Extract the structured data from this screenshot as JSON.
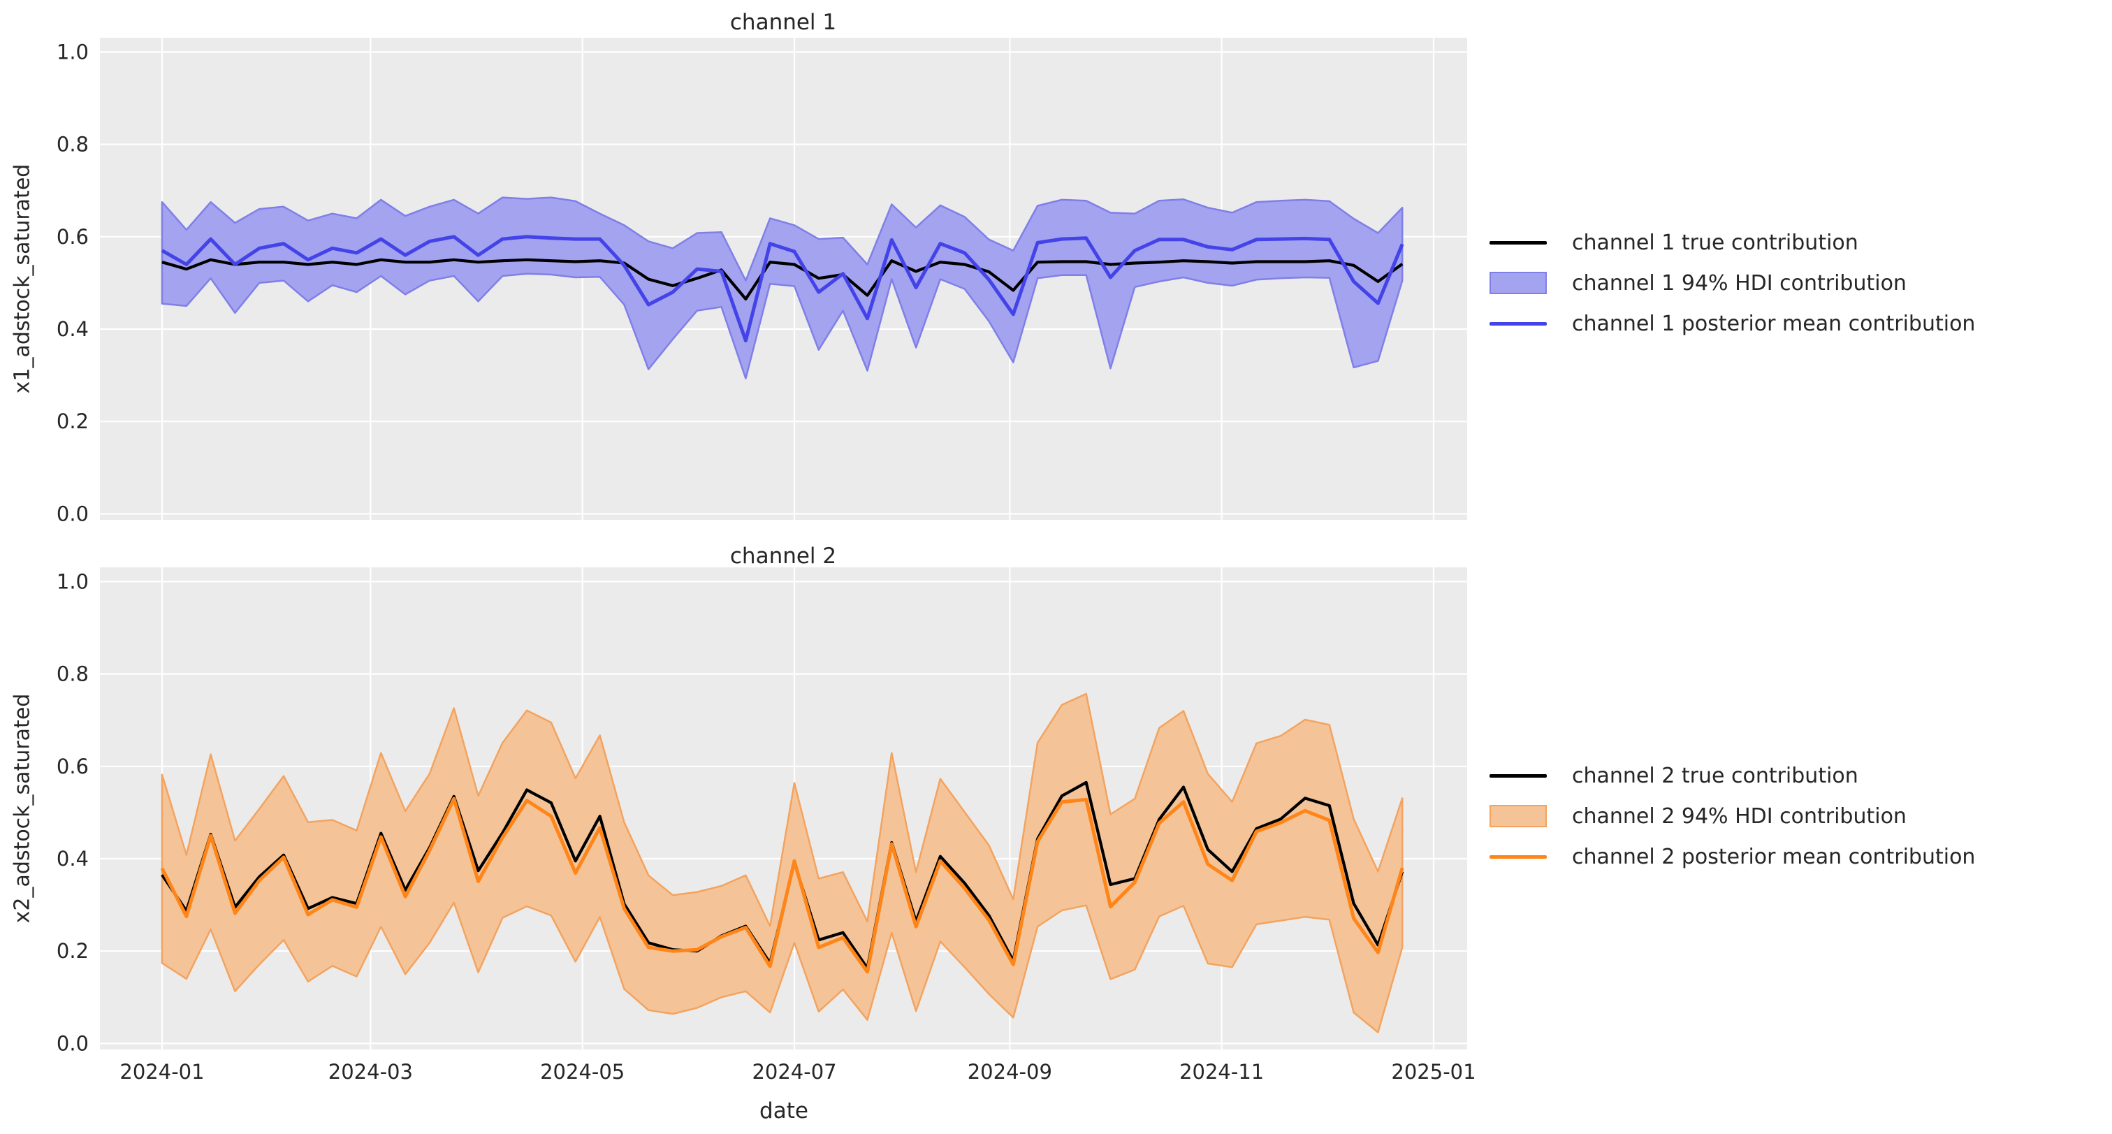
{
  "figure": {
    "background": "#ffffff",
    "axes_background": "#ebebeb",
    "grid_color": "#ffffff",
    "text_color": "#262626"
  },
  "xlabel": "date",
  "chart_data": [
    {
      "type": "line",
      "title": "channel 1",
      "ylabel": "x1_adstock_saturated",
      "ylim": [
        0.0,
        1.0
      ],
      "grid": true,
      "legend_position": "center right outside",
      "ytick_labels": [
        "0.0",
        "0.2",
        "0.4",
        "0.6",
        "0.8",
        "1.0"
      ],
      "yticks": [
        0,
        0.2,
        0.4,
        0.6,
        0.8,
        1.0
      ],
      "xticks": [
        {
          "label": "2024-01",
          "day": 0
        },
        {
          "label": "2024-03",
          "day": 60
        },
        {
          "label": "2024-05",
          "day": 121
        },
        {
          "label": "2024-07",
          "day": 182
        },
        {
          "label": "2024-09",
          "day": 244
        },
        {
          "label": "2024-11",
          "day": 305
        },
        {
          "label": "2025-01",
          "day": 366
        }
      ],
      "show_xtick_labels": false,
      "colors": {
        "true_line": "#000000",
        "mean_line": "#4343e8",
        "band_fill": "#a3a3f0",
        "band_edge": "#7f7fe8"
      },
      "legend": [
        {
          "label": "channel 1 true contribution",
          "swatch": "line",
          "color": "#000000"
        },
        {
          "label": "channel 1 94% HDI contribution",
          "swatch": "patch",
          "color": "#a3a3f0",
          "edge": "#7f7fe8"
        },
        {
          "label": "channel 1 posterior mean contribution",
          "swatch": "line",
          "color": "#4343e8"
        }
      ],
      "dates": [
        "2024-01-01",
        "2024-01-08",
        "2024-01-15",
        "2024-01-22",
        "2024-01-29",
        "2024-02-05",
        "2024-02-12",
        "2024-02-19",
        "2024-02-26",
        "2024-03-04",
        "2024-03-11",
        "2024-03-18",
        "2024-03-25",
        "2024-04-01",
        "2024-04-08",
        "2024-04-15",
        "2024-04-22",
        "2024-04-29",
        "2024-05-06",
        "2024-05-13",
        "2024-05-20",
        "2024-05-27",
        "2024-06-03",
        "2024-06-10",
        "2024-06-17",
        "2024-06-24",
        "2024-07-01",
        "2024-07-08",
        "2024-07-15",
        "2024-07-22",
        "2024-07-29",
        "2024-08-05",
        "2024-08-12",
        "2024-08-19",
        "2024-08-26",
        "2024-09-02",
        "2024-09-09",
        "2024-09-16",
        "2024-09-23",
        "2024-09-30",
        "2024-10-07",
        "2024-10-14",
        "2024-10-21",
        "2024-10-28",
        "2024-11-04",
        "2024-11-11",
        "2024-11-18",
        "2024-11-25",
        "2024-12-02",
        "2024-12-09",
        "2024-12-16",
        "2024-12-23"
      ],
      "series": [
        {
          "name": "channel 1 true contribution",
          "values": [
            0.545,
            0.53,
            0.55,
            0.54,
            0.545,
            0.545,
            0.54,
            0.545,
            0.54,
            0.55,
            0.545,
            0.545,
            0.55,
            0.545,
            0.548,
            0.55,
            0.548,
            0.546,
            0.548,
            0.543,
            0.508,
            0.494,
            0.51,
            0.528,
            0.465,
            0.545,
            0.54,
            0.51,
            0.518,
            0.473,
            0.548,
            0.525,
            0.545,
            0.54,
            0.524,
            0.484,
            0.545,
            0.546,
            0.546,
            0.54,
            0.543,
            0.545,
            0.548,
            0.546,
            0.543,
            0.546,
            0.546,
            0.546,
            0.548,
            0.538,
            0.503,
            0.541
          ]
        },
        {
          "name": "channel 1 posterior mean contribution",
          "values": [
            0.57,
            0.54,
            0.595,
            0.54,
            0.575,
            0.585,
            0.55,
            0.575,
            0.565,
            0.595,
            0.56,
            0.59,
            0.6,
            0.56,
            0.595,
            0.6,
            0.597,
            0.595,
            0.595,
            0.538,
            0.453,
            0.48,
            0.53,
            0.525,
            0.375,
            0.585,
            0.568,
            0.48,
            0.52,
            0.423,
            0.593,
            0.49,
            0.585,
            0.565,
            0.507,
            0.432,
            0.587,
            0.595,
            0.597,
            0.512,
            0.57,
            0.594,
            0.594,
            0.578,
            0.572,
            0.594,
            0.595,
            0.596,
            0.594,
            0.503,
            0.456,
            0.584
          ]
        },
        {
          "name": "channel 1 94% HDI upper",
          "values": [
            0.675,
            0.615,
            0.675,
            0.63,
            0.66,
            0.665,
            0.635,
            0.65,
            0.64,
            0.68,
            0.645,
            0.665,
            0.68,
            0.65,
            0.685,
            0.682,
            0.685,
            0.677,
            0.65,
            0.625,
            0.59,
            0.575,
            0.608,
            0.61,
            0.505,
            0.64,
            0.625,
            0.595,
            0.598,
            0.54,
            0.67,
            0.62,
            0.668,
            0.643,
            0.594,
            0.57,
            0.667,
            0.68,
            0.678,
            0.652,
            0.65,
            0.678,
            0.681,
            0.663,
            0.652,
            0.675,
            0.678,
            0.68,
            0.677,
            0.639,
            0.608,
            0.663
          ]
        },
        {
          "name": "channel 1 94% HDI lower",
          "values": [
            0.455,
            0.45,
            0.51,
            0.435,
            0.5,
            0.505,
            0.46,
            0.495,
            0.48,
            0.515,
            0.475,
            0.505,
            0.515,
            0.46,
            0.515,
            0.52,
            0.518,
            0.512,
            0.513,
            0.453,
            0.313,
            0.378,
            0.44,
            0.448,
            0.293,
            0.498,
            0.493,
            0.355,
            0.44,
            0.31,
            0.508,
            0.36,
            0.508,
            0.487,
            0.417,
            0.328,
            0.51,
            0.517,
            0.517,
            0.315,
            0.491,
            0.503,
            0.512,
            0.5,
            0.494,
            0.507,
            0.51,
            0.512,
            0.511,
            0.317,
            0.331,
            0.505
          ]
        }
      ]
    },
    {
      "type": "line",
      "title": "channel 2",
      "ylabel": "x2_adstock_saturated",
      "ylim": [
        0.0,
        1.0
      ],
      "grid": true,
      "legend_position": "center right outside",
      "ytick_labels": [
        "0.0",
        "0.2",
        "0.4",
        "0.6",
        "0.8",
        "1.0"
      ],
      "yticks": [
        0,
        0.2,
        0.4,
        0.6,
        0.8,
        1.0
      ],
      "xticks": [
        {
          "label": "2024-01",
          "day": 0
        },
        {
          "label": "2024-03",
          "day": 60
        },
        {
          "label": "2024-05",
          "day": 121
        },
        {
          "label": "2024-07",
          "day": 182
        },
        {
          "label": "2024-09",
          "day": 244
        },
        {
          "label": "2024-11",
          "day": 305
        },
        {
          "label": "2025-01",
          "day": 366
        }
      ],
      "show_xtick_labels": true,
      "colors": {
        "true_line": "#000000",
        "mean_line": "#ff8518",
        "band_fill": "#f4c498",
        "band_edge": "#f3a35f"
      },
      "legend": [
        {
          "label": "channel 2 true contribution",
          "swatch": "line",
          "color": "#000000"
        },
        {
          "label": "channel 2 94% HDI contribution",
          "swatch": "patch",
          "color": "#f4c498",
          "edge": "#f3a35f"
        },
        {
          "label": "channel 2 posterior mean contribution",
          "swatch": "line",
          "color": "#ff8518"
        }
      ],
      "dates": [
        "2024-01-01",
        "2024-01-08",
        "2024-01-15",
        "2024-01-22",
        "2024-01-29",
        "2024-02-05",
        "2024-02-12",
        "2024-02-19",
        "2024-02-26",
        "2024-03-04",
        "2024-03-11",
        "2024-03-18",
        "2024-03-25",
        "2024-04-01",
        "2024-04-08",
        "2024-04-15",
        "2024-04-22",
        "2024-04-29",
        "2024-05-06",
        "2024-05-13",
        "2024-05-20",
        "2024-05-27",
        "2024-06-03",
        "2024-06-10",
        "2024-06-17",
        "2024-06-24",
        "2024-07-01",
        "2024-07-08",
        "2024-07-15",
        "2024-07-22",
        "2024-07-29",
        "2024-08-05",
        "2024-08-12",
        "2024-08-19",
        "2024-08-26",
        "2024-09-02",
        "2024-09-09",
        "2024-09-16",
        "2024-09-23",
        "2024-09-30",
        "2024-10-07",
        "2024-10-14",
        "2024-10-21",
        "2024-10-28",
        "2024-11-04",
        "2024-11-11",
        "2024-11-18",
        "2024-11-25",
        "2024-12-02",
        "2024-12-09",
        "2024-12-16",
        "2024-12-23"
      ],
      "series": [
        {
          "name": "channel 2 true contribution",
          "values": [
            0.365,
            0.287,
            0.453,
            0.295,
            0.361,
            0.408,
            0.292,
            0.316,
            0.303,
            0.455,
            0.332,
            0.424,
            0.535,
            0.374,
            0.456,
            0.549,
            0.521,
            0.395,
            0.492,
            0.302,
            0.218,
            0.203,
            0.2,
            0.233,
            0.254,
            0.174,
            0.392,
            0.224,
            0.24,
            0.163,
            0.435,
            0.264,
            0.405,
            0.347,
            0.277,
            0.179,
            0.443,
            0.536,
            0.565,
            0.344,
            0.357,
            0.485,
            0.555,
            0.42,
            0.372,
            0.465,
            0.486,
            0.531,
            0.515,
            0.303,
            0.213,
            0.372
          ]
        },
        {
          "name": "channel 2 posterior mean contribution",
          "values": [
            0.379,
            0.275,
            0.45,
            0.282,
            0.353,
            0.403,
            0.279,
            0.311,
            0.295,
            0.447,
            0.318,
            0.418,
            0.53,
            0.351,
            0.446,
            0.526,
            0.492,
            0.369,
            0.467,
            0.292,
            0.208,
            0.2,
            0.203,
            0.231,
            0.251,
            0.167,
            0.395,
            0.208,
            0.229,
            0.155,
            0.432,
            0.253,
            0.395,
            0.336,
            0.267,
            0.171,
            0.437,
            0.523,
            0.528,
            0.296,
            0.349,
            0.477,
            0.523,
            0.388,
            0.353,
            0.459,
            0.478,
            0.504,
            0.483,
            0.271,
            0.197,
            0.38
          ]
        },
        {
          "name": "channel 2 94% HDI upper",
          "values": [
            0.582,
            0.408,
            0.626,
            0.439,
            0.508,
            0.579,
            0.479,
            0.484,
            0.461,
            0.629,
            0.503,
            0.584,
            0.726,
            0.536,
            0.651,
            0.721,
            0.695,
            0.574,
            0.667,
            0.479,
            0.364,
            0.321,
            0.328,
            0.341,
            0.364,
            0.254,
            0.564,
            0.357,
            0.371,
            0.264,
            0.629,
            0.371,
            0.573,
            0.501,
            0.429,
            0.312,
            0.651,
            0.733,
            0.757,
            0.496,
            0.53,
            0.683,
            0.72,
            0.584,
            0.523,
            0.65,
            0.666,
            0.701,
            0.69,
            0.486,
            0.372,
            0.531
          ]
        },
        {
          "name": "channel 2 94% HDI lower",
          "values": [
            0.174,
            0.14,
            0.247,
            0.113,
            0.171,
            0.224,
            0.134,
            0.168,
            0.145,
            0.253,
            0.15,
            0.218,
            0.305,
            0.154,
            0.272,
            0.297,
            0.277,
            0.177,
            0.274,
            0.118,
            0.072,
            0.064,
            0.077,
            0.1,
            0.113,
            0.067,
            0.218,
            0.069,
            0.117,
            0.051,
            0.24,
            0.07,
            0.221,
            0.165,
            0.107,
            0.056,
            0.253,
            0.288,
            0.299,
            0.139,
            0.16,
            0.275,
            0.298,
            0.173,
            0.165,
            0.258,
            0.266,
            0.274,
            0.268,
            0.067,
            0.024,
            0.208
          ]
        }
      ]
    }
  ]
}
